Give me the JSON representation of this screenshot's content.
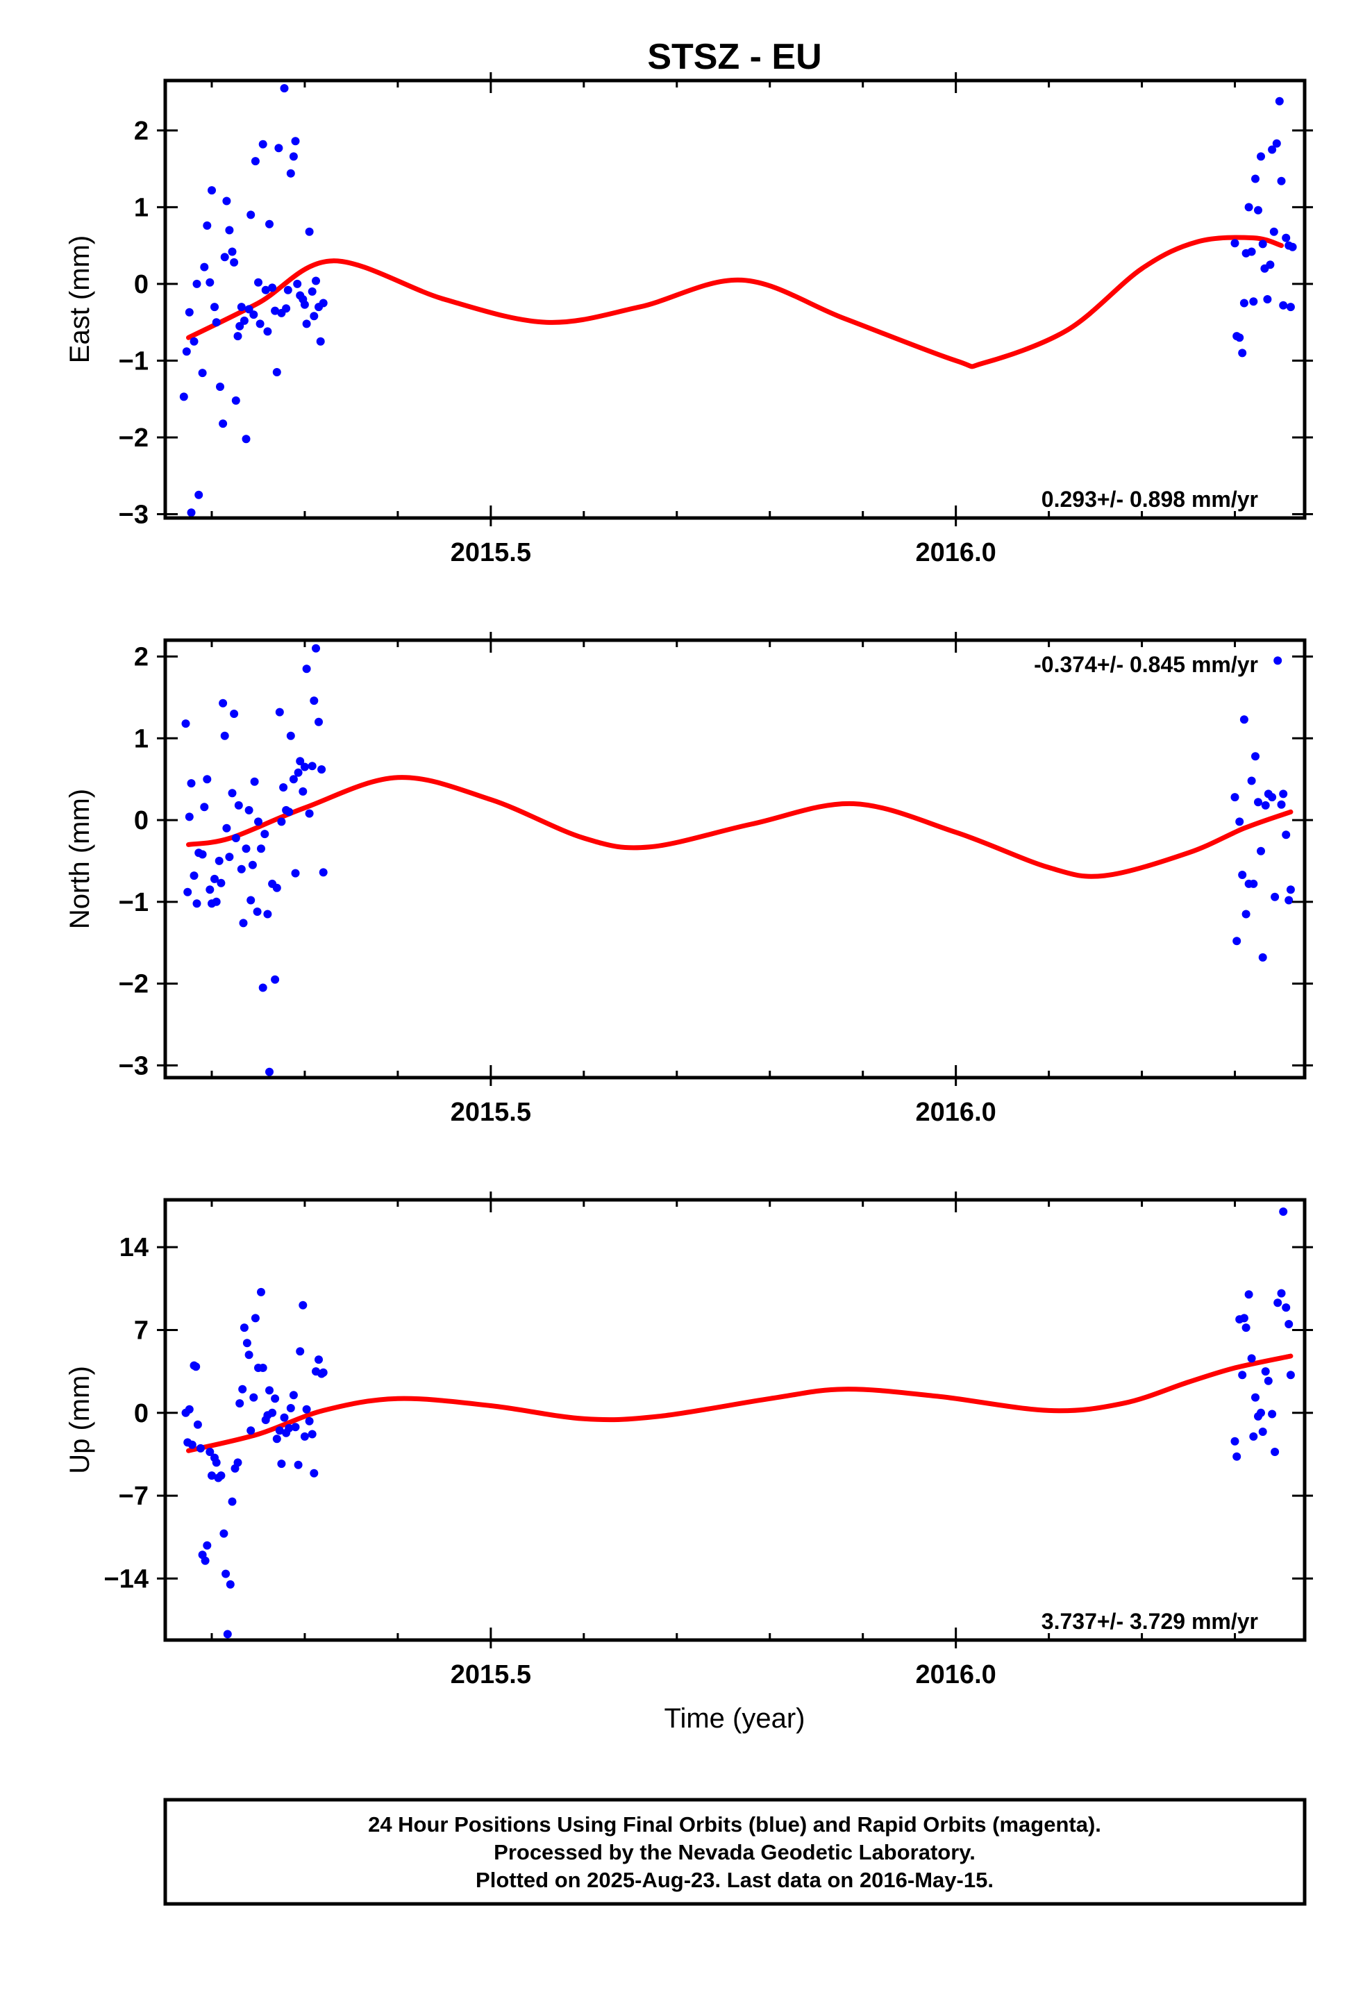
{
  "chart_data": {
    "type": "scatter",
    "title": "STSZ - EU",
    "xlabel": "Time (year)",
    "xlim": [
      2015.15,
      2016.375
    ],
    "x_ticks": [
      2015.5,
      2016.0
    ],
    "x_tick_labels": [
      "2015.5",
      "2016.0"
    ],
    "x_minor_ticks": [
      2015.2,
      2015.3,
      2015.4,
      2015.6,
      2015.7,
      2015.8,
      2015.9,
      2016.1,
      2016.2,
      2016.3
    ],
    "colors": {
      "data": "#0000ff",
      "model": "#ff0000"
    },
    "footer": [
      "24 Hour Positions Using Final Orbits (blue) and Rapid Orbits (magenta).",
      "Processed by the Nevada Geodetic Laboratory.",
      "Plotted on 2025-Aug-23. Last data on 2016-May-15."
    ],
    "panels": [
      {
        "name": "east",
        "ylabel": "East (mm)",
        "ylim": [
          -3.05,
          2.65
        ],
        "y_ticks": [
          -3,
          -2,
          -1,
          0,
          1,
          2
        ],
        "y_tick_labels": [
          "−3",
          "−2",
          "−1",
          "0",
          "1",
          "2"
        ],
        "rate_label": "0.293+/- 0.898 mm/yr",
        "rate_position": "bottom-right",
        "model_curve": {
          "x": [
            2015.175,
            2015.25,
            2015.33,
            2015.45,
            2015.56,
            2015.66,
            2015.77,
            2015.88,
            2016.0,
            2016.03,
            2016.12,
            2016.2,
            2016.26,
            2016.32,
            2016.35
          ],
          "y": [
            -0.7,
            -0.25,
            0.3,
            -0.2,
            -0.5,
            -0.3,
            0.05,
            -0.45,
            -1.0,
            -1.03,
            -0.6,
            0.2,
            0.55,
            0.6,
            0.5
          ]
        },
        "points": {
          "x": [
            2015.17,
            2015.173,
            2015.176,
            2015.178,
            2015.181,
            2015.184,
            2015.186,
            2015.19,
            2015.192,
            2015.195,
            2015.198,
            2015.2,
            2015.203,
            2015.205,
            2015.209,
            2015.212,
            2015.214,
            2015.216,
            2015.219,
            2015.222,
            2015.224,
            2015.226,
            2015.228,
            2015.23,
            2015.232,
            2015.235,
            2015.237,
            2015.24,
            2015.242,
            2015.245,
            2015.247,
            2015.25,
            2015.252,
            2015.255,
            2015.258,
            2015.26,
            2015.262,
            2015.265,
            2015.268,
            2015.27,
            2015.272,
            2015.275,
            2015.278,
            2015.28,
            2015.282,
            2015.285,
            2015.288,
            2015.29,
            2015.292,
            2015.295,
            2015.298,
            2015.3,
            2015.302,
            2015.305,
            2015.308,
            2015.31,
            2015.312,
            2015.315,
            2015.317,
            2015.32,
            2016.3,
            2016.302,
            2016.305,
            2016.308,
            2016.31,
            2016.312,
            2016.315,
            2016.318,
            2016.32,
            2016.322,
            2016.325,
            2016.328,
            2016.33,
            2016.332,
            2016.335,
            2016.338,
            2016.34,
            2016.342,
            2016.345,
            2016.348,
            2016.35,
            2016.352
          ],
          "y": [
            -1.47,
            -0.88,
            -0.37,
            -2.98,
            -0.75,
            0.0,
            -2.75,
            -1.16,
            0.22,
            0.76,
            0.02,
            1.22,
            -0.3,
            -0.5,
            -1.34,
            -1.82,
            0.35,
            1.08,
            0.7,
            0.42,
            0.28,
            -1.52,
            -0.68,
            -0.55,
            -0.3,
            -0.48,
            -2.02,
            -0.33,
            0.9,
            -0.4,
            1.6,
            0.02,
            -0.52,
            1.82,
            -0.08,
            -0.62,
            0.78,
            -0.05,
            -0.35,
            -1.15,
            1.77,
            -0.38,
            2.55,
            -0.32,
            -0.08,
            1.44,
            1.66,
            1.86,
            0.0,
            -0.15,
            -0.2,
            -0.27,
            -0.52,
            0.68,
            -0.1,
            -0.42,
            0.04,
            -0.3,
            -0.75,
            -0.25,
            0.53,
            -0.68,
            -0.7,
            -0.9,
            -0.25,
            0.4,
            1.0,
            0.42,
            -0.23,
            1.37,
            0.96,
            1.66,
            0.52,
            0.2,
            -0.2,
            0.25,
            1.75,
            0.68,
            1.83,
            2.38,
            1.34,
            -0.28
          ],
          "x_extra": [
            2016.355,
            2016.358,
            2016.36,
            2016.362
          ],
          "y_extra": [
            0.6,
            0.5,
            -0.3,
            0.48
          ]
        }
      },
      {
        "name": "north",
        "ylabel": "North (mm)",
        "ylim": [
          -3.15,
          2.2
        ],
        "y_ticks": [
          -3,
          -2,
          -1,
          0,
          1,
          2
        ],
        "y_tick_labels": [
          "−3",
          "−2",
          "−1",
          "0",
          "1",
          "2"
        ],
        "rate_label": "-0.374+/- 0.845 mm/yr",
        "rate_position": "top-right",
        "model_curve": {
          "x": [
            2015.175,
            2015.22,
            2015.3,
            2015.4,
            2015.5,
            2015.6,
            2015.67,
            2015.78,
            2015.89,
            2016.0,
            2016.1,
            2016.16,
            2016.25,
            2016.31,
            2016.36
          ],
          "y": [
            -0.3,
            -0.22,
            0.15,
            0.52,
            0.25,
            -0.22,
            -0.33,
            -0.05,
            0.2,
            -0.15,
            -0.58,
            -0.68,
            -0.4,
            -0.1,
            0.1
          ]
        },
        "points": {
          "x": [
            2015.172,
            2015.174,
            2015.176,
            2015.178,
            2015.181,
            2015.184,
            2015.186,
            2015.19,
            2015.192,
            2015.195,
            2015.198,
            2015.2,
            2015.203,
            2015.205,
            2015.208,
            2015.21,
            2015.212,
            2015.214,
            2015.216,
            2015.219,
            2015.222,
            2015.224,
            2015.226,
            2015.229,
            2015.232,
            2015.234,
            2015.237,
            2015.24,
            2015.242,
            2015.244,
            2015.246,
            2015.249,
            2015.25,
            2015.253,
            2015.255,
            2015.257,
            2015.26,
            2015.262,
            2015.265,
            2015.268,
            2015.27,
            2015.273,
            2015.275,
            2015.277,
            2015.28,
            2015.283,
            2015.285,
            2015.288,
            2015.29,
            2015.293,
            2015.295,
            2015.298,
            2015.3,
            2015.302,
            2015.305,
            2015.308,
            2015.31,
            2015.312,
            2015.315,
            2015.318,
            2015.32,
            2016.3,
            2016.302,
            2016.305,
            2016.308,
            2016.31,
            2016.312,
            2016.315,
            2016.318,
            2016.32,
            2016.322,
            2016.325,
            2016.328,
            2016.33,
            2016.333,
            2016.336,
            2016.34,
            2016.343,
            2016.346,
            2016.35,
            2016.352,
            2016.355,
            2016.358,
            2016.36
          ],
          "y": [
            1.18,
            -0.88,
            0.04,
            0.45,
            -0.68,
            -1.02,
            -0.4,
            -0.42,
            0.16,
            0.5,
            -0.85,
            -1.02,
            -0.72,
            -1.0,
            -0.5,
            -0.77,
            1.43,
            1.03,
            -0.1,
            -0.45,
            0.33,
            1.3,
            -0.22,
            0.18,
            -0.6,
            -1.26,
            -0.35,
            0.12,
            -0.98,
            -0.55,
            0.47,
            -1.12,
            -0.02,
            -0.35,
            -2.05,
            -0.17,
            -1.15,
            -3.08,
            -0.78,
            -1.95,
            -0.83,
            1.32,
            -0.02,
            0.4,
            0.12,
            0.1,
            1.03,
            0.5,
            -0.65,
            0.58,
            0.72,
            0.35,
            0.65,
            1.85,
            0.08,
            0.66,
            1.46,
            2.1,
            1.2,
            0.62,
            -0.64,
            0.28,
            -1.48,
            -0.02,
            -0.67,
            1.23,
            -1.15,
            -0.78,
            0.48,
            -0.78,
            0.78,
            0.22,
            -0.38,
            -1.68,
            0.18,
            0.32,
            0.28,
            -0.94,
            1.95,
            0.19,
            0.32,
            -0.18,
            -0.98,
            -0.85
          ]
        }
      },
      {
        "name": "up",
        "ylabel": "Up (mm)",
        "ylim": [
          -19.2,
          18.0
        ],
        "y_ticks": [
          -14,
          -7,
          0,
          7,
          14
        ],
        "y_tick_labels": [
          "−14",
          "−7",
          "0",
          "7",
          "14"
        ],
        "rate_label": "3.737+/- 3.729 mm/yr",
        "rate_position": "bottom-right",
        "model_curve": {
          "x": [
            2015.175,
            2015.25,
            2015.32,
            2015.4,
            2015.5,
            2015.6,
            2015.68,
            2015.8,
            2015.88,
            2015.98,
            2016.1,
            2016.18,
            2016.25,
            2016.3,
            2016.36
          ],
          "y": [
            -3.2,
            -1.8,
            0.2,
            1.2,
            0.6,
            -0.5,
            -0.3,
            1.2,
            2.0,
            1.4,
            0.2,
            0.8,
            2.6,
            3.8,
            4.8
          ]
        },
        "points": {
          "x": [
            2015.172,
            2015.174,
            2015.176,
            2015.179,
            2015.181,
            2015.183,
            2015.185,
            2015.188,
            2015.19,
            2015.193,
            2015.195,
            2015.198,
            2015.2,
            2015.203,
            2015.205,
            2015.207,
            2015.21,
            2015.213,
            2015.215,
            2015.217,
            2015.22,
            2015.222,
            2015.225,
            2015.228,
            2015.23,
            2015.233,
            2015.235,
            2015.238,
            2015.24,
            2015.242,
            2015.245,
            2015.247,
            2015.25,
            2015.253,
            2015.255,
            2015.258,
            2015.26,
            2015.262,
            2015.265,
            2015.268,
            2015.27,
            2015.273,
            2015.275,
            2015.278,
            2015.28,
            2015.283,
            2015.285,
            2015.288,
            2015.29,
            2015.293,
            2015.295,
            2015.298,
            2015.3,
            2015.302,
            2015.305,
            2015.308,
            2015.31,
            2015.312,
            2015.315,
            2015.318,
            2015.32,
            2016.3,
            2016.302,
            2016.305,
            2016.308,
            2016.31,
            2016.312,
            2016.315,
            2016.318,
            2016.32,
            2016.322,
            2016.325,
            2016.328,
            2016.33,
            2016.333,
            2016.336,
            2016.34,
            2016.343,
            2016.346,
            2016.35,
            2016.352,
            2016.355,
            2016.358,
            2016.36
          ],
          "y": [
            0.0,
            -2.5,
            0.3,
            -2.7,
            4.0,
            3.9,
            -1.0,
            -3.0,
            -12.0,
            -12.5,
            -11.2,
            -3.3,
            -5.3,
            -3.8,
            -4.2,
            -5.5,
            -5.3,
            -10.2,
            -13.6,
            -18.7,
            -14.5,
            -7.5,
            -4.7,
            -4.2,
            0.8,
            2.0,
            7.2,
            5.9,
            4.9,
            -1.5,
            1.3,
            8.0,
            3.8,
            10.2,
            3.8,
            -0.6,
            -0.2,
            1.9,
            0.0,
            1.2,
            -2.2,
            -1.5,
            -4.3,
            -0.4,
            -1.7,
            -1.3,
            0.4,
            1.5,
            -1.2,
            -4.4,
            5.2,
            9.1,
            -2.0,
            0.3,
            -0.7,
            -1.8,
            -5.1,
            3.5,
            4.5,
            3.3,
            3.4,
            -2.4,
            -3.7,
            7.9,
            3.2,
            8.0,
            7.2,
            10.0,
            4.6,
            -2.0,
            1.3,
            -0.3,
            0.0,
            -1.6,
            3.5,
            2.7,
            -0.1,
            -3.3,
            9.3,
            10.1,
            17.0,
            8.9,
            7.5,
            3.2
          ]
        }
      }
    ]
  }
}
